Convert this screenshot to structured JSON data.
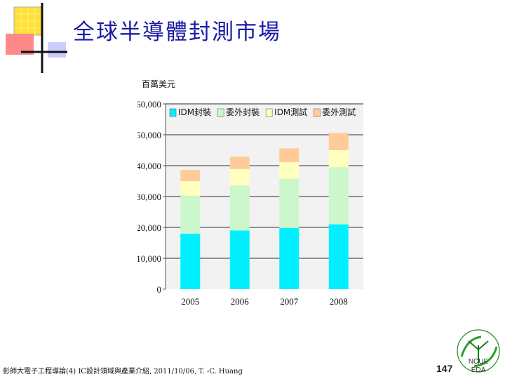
{
  "slide": {
    "title": "全球半導體封測市場",
    "footer": "彭師大電子工程導論(4) IC設計領域與產業介紹, 2011/10/06, T. -C. Huang",
    "page_number": "147",
    "logo_text_top": "NCUE",
    "logo_text_bottom": "EDA"
  },
  "colors": {
    "title": "#1a1aa6",
    "idm_packaging": "#00f0ff",
    "outsourced_packaging": "#ccf7cc",
    "idm_testing": "#ffffc0",
    "outsourced_testing": "#ffcc99",
    "plot_background": "#f2f2f2"
  },
  "chart_data": {
    "type": "bar",
    "stacked": true,
    "unit_label": "百萬美元",
    "categories": [
      "2005",
      "2006",
      "2007",
      "2008"
    ],
    "y_ticks": [
      "0",
      "10,000",
      "20,000",
      "30,000",
      "40,000",
      "50,000",
      "60,000"
    ],
    "ylim": [
      0,
      60000
    ],
    "legend_position": "top",
    "series": [
      {
        "name": "IDM封裝",
        "color": "#00f0ff",
        "values": [
          18000,
          19000,
          19800,
          21000
        ]
      },
      {
        "name": "委外封裝",
        "color": "#ccf7cc",
        "values": [
          12300,
          14600,
          16000,
          18500
        ]
      },
      {
        "name": "IDM測試",
        "color": "#ffffc0",
        "values": [
          4700,
          5300,
          5300,
          5500
        ]
      },
      {
        "name": "委外測試",
        "color": "#ffcc99",
        "values": [
          3600,
          4000,
          4500,
          5600
        ]
      }
    ]
  }
}
